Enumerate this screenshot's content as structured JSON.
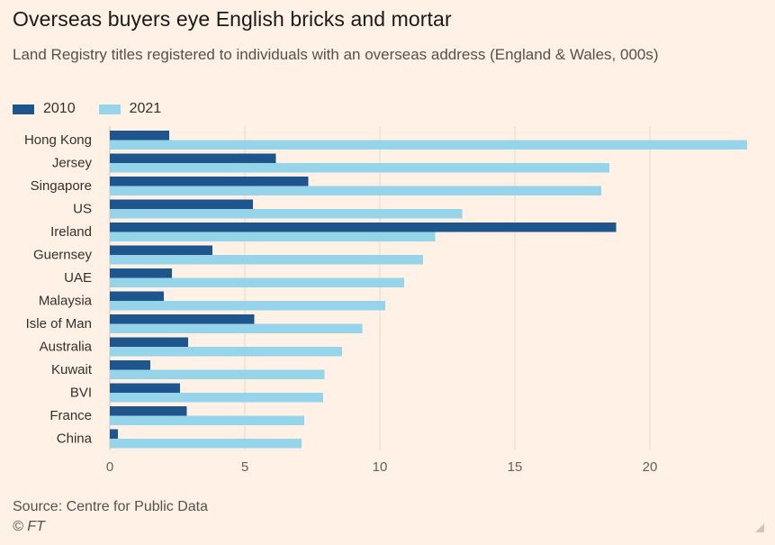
{
  "header": {
    "title": "Overseas buyers eye English bricks and mortar",
    "subtitle": "Land Registry titles registered to individuals with an overseas address (England & Wales, 000s)"
  },
  "footer": {
    "source": "Source: Centre for Public Data",
    "copyright": "© FT"
  },
  "colors": {
    "series_2010": "#1e558c",
    "series_2021": "#96d4ea",
    "grid": "#e6d9ce",
    "background": "#fff1e5"
  },
  "chart_data": {
    "type": "bar",
    "orientation": "horizontal",
    "title": "Overseas buyers eye English bricks and mortar",
    "subtitle": "Land Registry titles registered to individuals with an overseas address (England & Wales, 000s)",
    "xlabel": "",
    "ylabel": "",
    "xlim": [
      0,
      23.7
    ],
    "xticks": [
      0,
      5,
      10,
      15,
      20
    ],
    "grid": true,
    "legend_position": "top-left",
    "categories": [
      "Hong Kong",
      "Jersey",
      "Singapore",
      "US",
      "Ireland",
      "Guernsey",
      "UAE",
      "Malaysia",
      "Isle of Man",
      "Australia",
      "Kuwait",
      "BVI",
      "France",
      "China"
    ],
    "series": [
      {
        "name": "2010",
        "values": [
          2.2,
          6.15,
          7.35,
          5.3,
          18.75,
          3.8,
          2.3,
          2.0,
          5.35,
          2.9,
          1.5,
          2.6,
          2.85,
          0.3
        ]
      },
      {
        "name": "2021",
        "values": [
          23.6,
          18.5,
          18.2,
          13.05,
          12.05,
          11.6,
          10.9,
          10.2,
          9.35,
          8.6,
          7.95,
          7.9,
          7.2,
          7.1
        ]
      }
    ]
  }
}
